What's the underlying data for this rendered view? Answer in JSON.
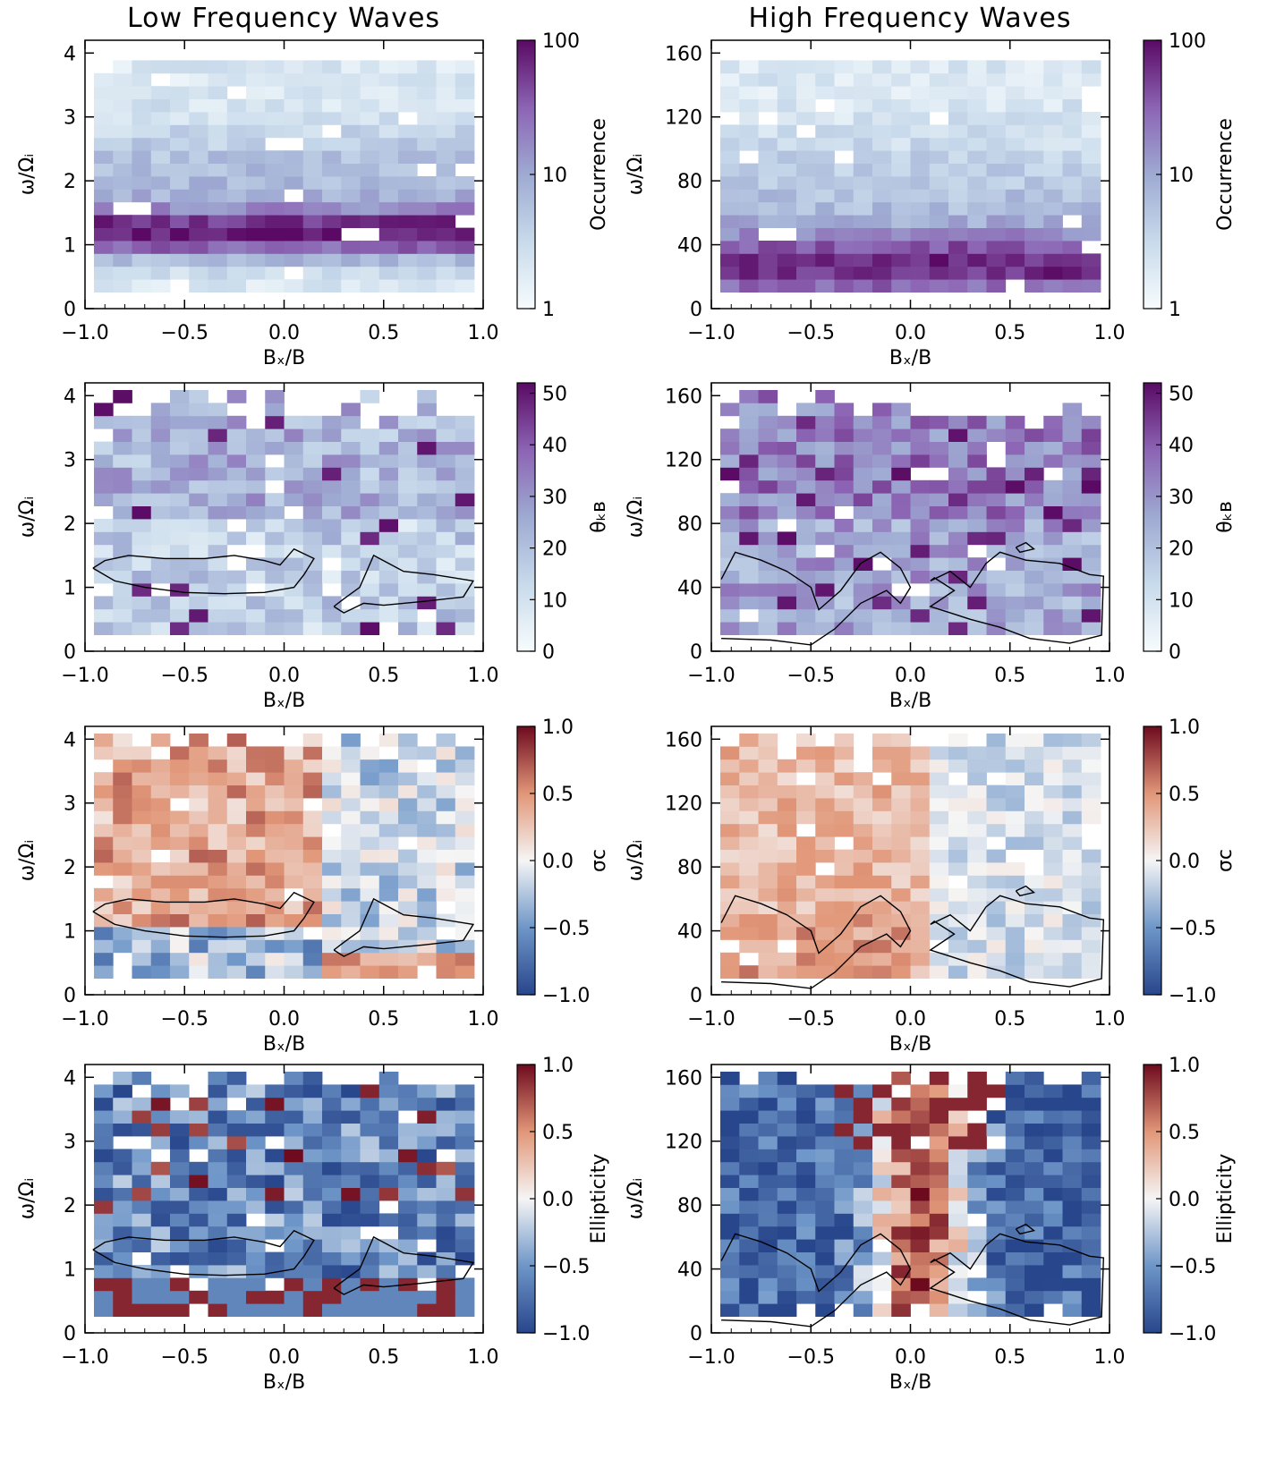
{
  "chart_data": {
    "type": "heatmap",
    "columns": [
      {
        "title": "Low Frequency Waves",
        "ylim": [
          0,
          4.2
        ],
        "yticks": [
          0,
          1,
          2,
          3,
          4
        ]
      },
      {
        "title": "High Frequency Waves",
        "ylim": [
          0,
          168
        ],
        "yticks": [
          0,
          40,
          80,
          120,
          160
        ]
      }
    ],
    "xlabel": "Bₓ/B",
    "ylabel": "ω/Ωᵢ",
    "xlim": [
      -1.0,
      1.0
    ],
    "xticks": [
      "−1.0",
      "−0.5",
      "0.0",
      "0.5",
      "1.0"
    ],
    "xtick_values": [
      -1.0,
      -0.5,
      0.0,
      0.5,
      1.0
    ],
    "rows": [
      {
        "quantity": "Occurrence",
        "colorbar_label": "Occurrence",
        "scale": "log",
        "range": [
          1,
          100
        ],
        "colorbar_ticks": [
          "1",
          "10",
          "100"
        ],
        "colormap": "blue-purple"
      },
      {
        "quantity": "theta_kB",
        "colorbar_label": "θₖʙ",
        "scale": "linear",
        "range": [
          0,
          52
        ],
        "colorbar_ticks": [
          "0",
          "10",
          "20",
          "30",
          "40",
          "50"
        ],
        "colormap": "blue-purple"
      },
      {
        "quantity": "sigma_c",
        "colorbar_label": "σc",
        "scale": "linear",
        "range": [
          -1.0,
          1.0
        ],
        "colorbar_ticks": [
          "−1.0",
          "−0.5",
          "0.0",
          "0.5",
          "1.0"
        ],
        "colormap": "blue-white-red"
      },
      {
        "quantity": "ellipticity",
        "colorbar_label": "Ellipticity",
        "scale": "linear",
        "range": [
          -1.0,
          1.0
        ],
        "colorbar_ticks": [
          "−1.0",
          "−0.5",
          "0.0",
          "0.5",
          "1.0"
        ],
        "colormap": "blue-white-red"
      }
    ],
    "contours": {
      "low": [
        [
          [
            -0.96,
            1.3
          ],
          [
            -0.9,
            1.42
          ],
          [
            -0.78,
            1.5
          ],
          [
            -0.6,
            1.45
          ],
          [
            -0.4,
            1.45
          ],
          [
            -0.25,
            1.5
          ],
          [
            -0.1,
            1.42
          ],
          [
            -0.02,
            1.35
          ],
          [
            0.05,
            1.6
          ],
          [
            0.15,
            1.45
          ],
          [
            0.1,
            1.2
          ],
          [
            0.05,
            1.0
          ],
          [
            -0.1,
            0.92
          ],
          [
            -0.3,
            0.9
          ],
          [
            -0.5,
            0.92
          ],
          [
            -0.7,
            1.0
          ],
          [
            -0.85,
            1.1
          ],
          [
            -0.96,
            1.3
          ]
        ],
        [
          [
            0.25,
            0.7
          ],
          [
            0.3,
            0.82
          ],
          [
            0.38,
            1.0
          ],
          [
            0.45,
            1.5
          ],
          [
            0.6,
            1.25
          ],
          [
            0.75,
            1.2
          ],
          [
            0.95,
            1.1
          ],
          [
            0.9,
            0.85
          ],
          [
            0.7,
            0.78
          ],
          [
            0.5,
            0.72
          ],
          [
            0.4,
            0.75
          ],
          [
            0.3,
            0.6
          ],
          [
            0.25,
            0.7
          ]
        ]
      ],
      "high": [
        [
          [
            -0.95,
            45
          ],
          [
            -0.88,
            62
          ],
          [
            -0.75,
            57
          ],
          [
            -0.62,
            50
          ],
          [
            -0.5,
            40
          ],
          [
            -0.46,
            26
          ],
          [
            -0.35,
            38
          ],
          [
            -0.25,
            55
          ],
          [
            -0.15,
            62
          ],
          [
            -0.05,
            52
          ],
          [
            0.0,
            40
          ],
          [
            -0.05,
            30
          ],
          [
            -0.12,
            38
          ],
          [
            -0.25,
            30
          ],
          [
            -0.38,
            14
          ],
          [
            -0.5,
            4
          ],
          [
            -0.7,
            7
          ],
          [
            -0.95,
            8
          ]
        ],
        [
          [
            0.1,
            44
          ],
          [
            0.2,
            50
          ],
          [
            0.3,
            40
          ],
          [
            0.38,
            55
          ],
          [
            0.45,
            62
          ],
          [
            0.58,
            57
          ],
          [
            0.75,
            55
          ],
          [
            0.9,
            48
          ],
          [
            0.97,
            47
          ],
          [
            0.96,
            10
          ],
          [
            0.8,
            5
          ],
          [
            0.6,
            8
          ],
          [
            0.45,
            15
          ],
          [
            0.3,
            20
          ],
          [
            0.2,
            24
          ],
          [
            0.1,
            28
          ],
          [
            0.22,
            38
          ],
          [
            0.12,
            46
          ],
          [
            0.1,
            44
          ]
        ],
        [
          [
            0.53,
            65
          ],
          [
            0.58,
            68
          ],
          [
            0.62,
            64
          ],
          [
            0.55,
            62
          ],
          [
            0.53,
            65
          ]
        ]
      ]
    }
  }
}
